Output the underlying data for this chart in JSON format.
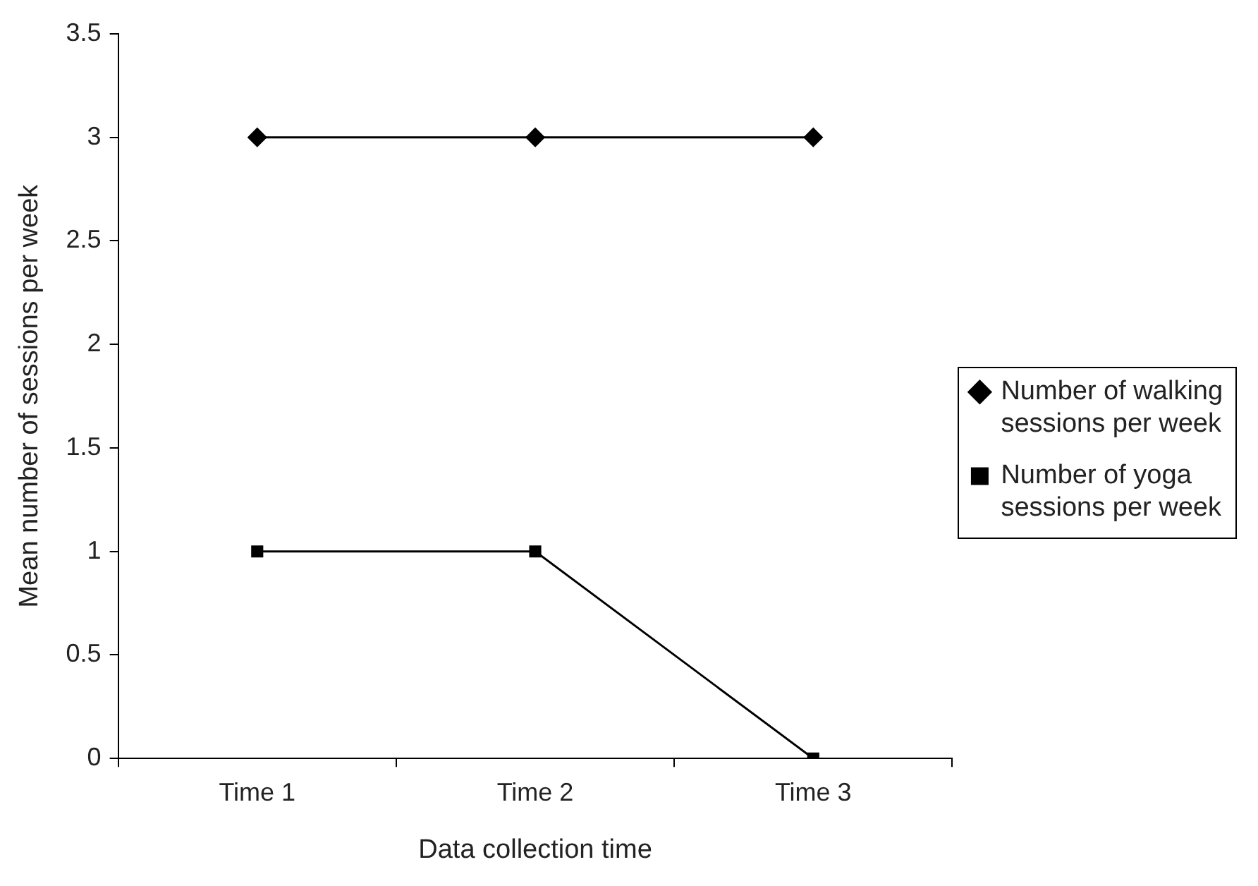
{
  "chart_data": {
    "type": "line",
    "xlabel": "Data collection time",
    "ylabel": "Mean number of sessions per week",
    "categories": [
      "Time 1",
      "Time 2",
      "Time 3"
    ],
    "series": [
      {
        "name": "Number of walking sessions per week",
        "color": "#000000",
        "marker": "diamond",
        "values": [
          3,
          3,
          3
        ]
      },
      {
        "name": "Number of yoga sessions per week",
        "color": "#000000",
        "marker": "square",
        "values": [
          1,
          1,
          0
        ]
      }
    ],
    "ylim": [
      0,
      3.5
    ],
    "yticks": [
      0,
      0.5,
      1,
      1.5,
      2,
      2.5,
      3,
      3.5
    ],
    "grid": false,
    "legend": "right",
    "line_style": "solid"
  }
}
